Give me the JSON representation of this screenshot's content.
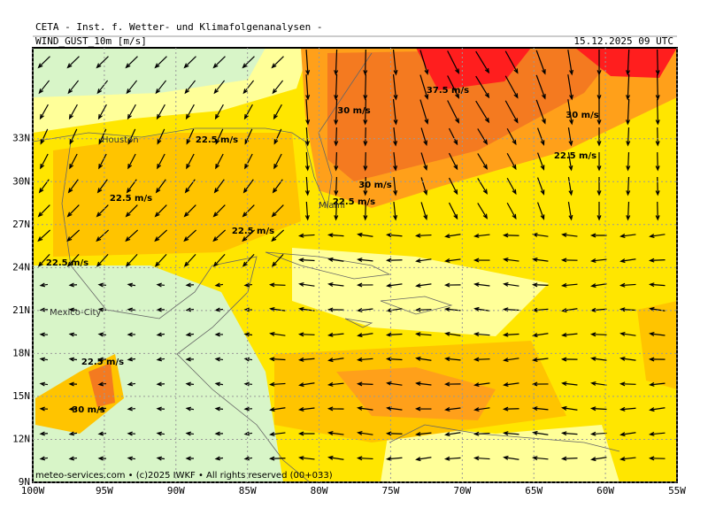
{
  "header": {
    "title": "CETA - Inst. f. Wetter- und Klimafolgenanalysen -",
    "field": "WIND_GUST_10m [m/s]",
    "valid": "15.12.2025 09 UTC"
  },
  "map": {
    "lat_ticks": [
      {
        "value": 33,
        "label": "33N"
      },
      {
        "value": 30,
        "label": "30N"
      },
      {
        "value": 27,
        "label": "27N"
      },
      {
        "value": 24,
        "label": "24N"
      },
      {
        "value": 21,
        "label": "21N"
      },
      {
        "value": 18,
        "label": "18N"
      },
      {
        "value": 15,
        "label": "15N"
      },
      {
        "value": 12,
        "label": "12N"
      },
      {
        "value": 9,
        "label": "9N"
      }
    ],
    "lon_ticks": [
      {
        "value": -100,
        "label": "100W"
      },
      {
        "value": -95,
        "label": "95W"
      },
      {
        "value": -90,
        "label": "90W"
      },
      {
        "value": -85,
        "label": "85W"
      },
      {
        "value": -80,
        "label": "80W"
      },
      {
        "value": -75,
        "label": "75W"
      },
      {
        "value": -70,
        "label": "70W"
      },
      {
        "value": -65,
        "label": "65W"
      },
      {
        "value": -60,
        "label": "60W"
      },
      {
        "value": -55,
        "label": "55W"
      }
    ],
    "contour_labels": [
      "37.5 m/s",
      "30 m/s",
      "30 m/s",
      "22.5 m/s",
      "22.5 m/s",
      "30 m/s",
      "22.5 m/s",
      "22.5 m/s",
      "22.5 m/s",
      "22.5 m/s",
      "22.5 m/s",
      "30 m/s"
    ],
    "place_labels": [
      "Houston",
      "Miami",
      "Mexico-City"
    ]
  },
  "footer": "meteo-services.com • (c)2025 IWKF • All rights reserved (00+033)"
}
